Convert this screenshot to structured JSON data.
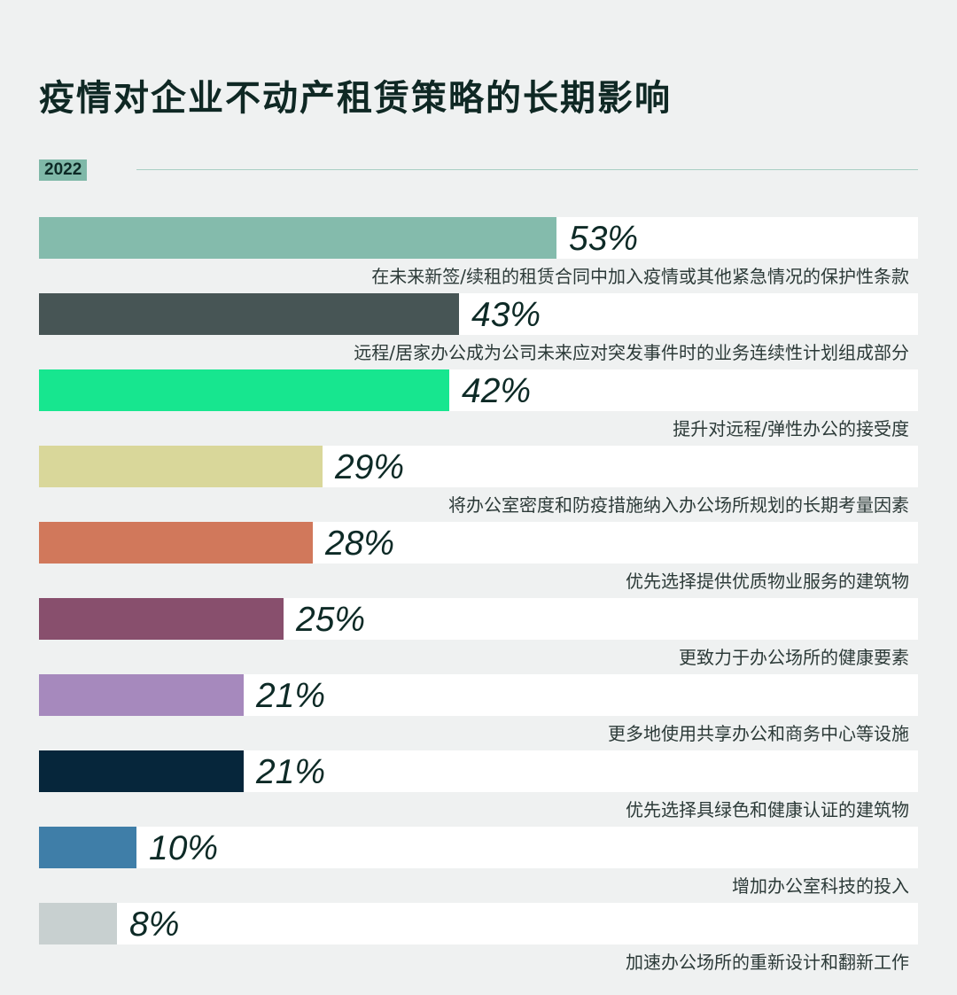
{
  "title": "疫情对企业不动产租赁策略的长期影响",
  "year": "2022",
  "chart_data": {
    "type": "bar",
    "orientation": "horizontal",
    "title": "疫情对企业不动产租赁策略的长期影响",
    "xlim": [
      0,
      90
    ],
    "categories": [
      "在未来新签/续租的租赁合同中加入疫情或其他紧急情况的保护性条款",
      "远程/居家办公成为公司未来应对突发事件时的业务连续性计划组成部分",
      "提升对远程/弹性办公的接受度",
      "将办公室密度和防疫措施纳入办公场所规划的长期考量因素",
      "优先选择提供优质物业服务的建筑物",
      "更致力于办公场所的健康要素",
      "更多地使用共享办公和商务中心等设施",
      "优先选择具绿色和健康认证的建筑物",
      "增加办公室科技的投入",
      "加速办公场所的重新设计和翻新工作"
    ],
    "values": [
      53,
      43,
      42,
      29,
      28,
      25,
      21,
      21,
      10,
      8
    ],
    "value_labels": [
      "53%",
      "43%",
      "42%",
      "29%",
      "28%",
      "25%",
      "21%",
      "21%",
      "10%",
      "8%"
    ],
    "colors": [
      "#84bbac",
      "#475555",
      "#17e68f",
      "#d9d79a",
      "#d1785b",
      "#884f6d",
      "#a689bd",
      "#06263b",
      "#3f7ea8",
      "#c8d0d0"
    ],
    "grid": false,
    "legend": "none"
  }
}
